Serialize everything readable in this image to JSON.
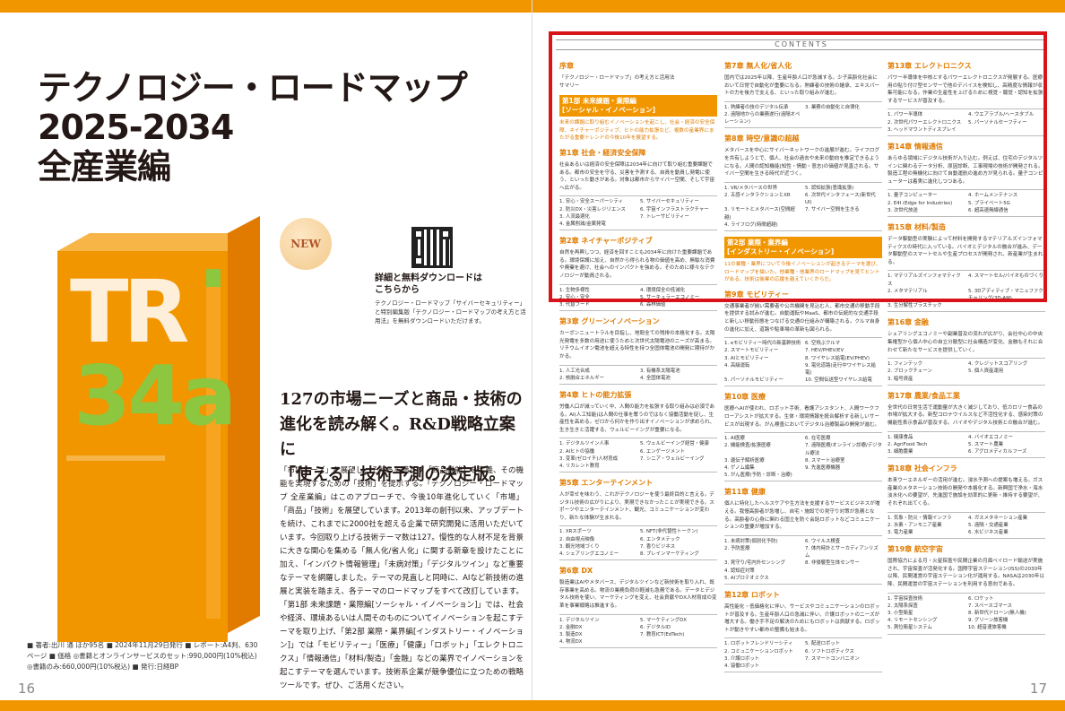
{
  "left": {
    "title_lines": [
      "テクノロジー・ロードマップ",
      "2025-2034",
      "全産業編"
    ],
    "badge": "NEW",
    "download_heading": "詳細と無料ダウンロードは\nこちらから",
    "download_text": "テクノロジー・ロードマップ「サイバーセキュリティー」と特別編集版「テクノロジー・ロードマップの考え方と活用法」を無料ダウンロードいただけます。",
    "catch": [
      "127の市場ニーズと商品・技術の",
      "進化を読み解く。R&D戦略立案に",
      "「使える」技術予測の決定版。"
    ],
    "body": "「市場ニーズ」を展望し、それらを満たす「商品機能」を定義、その機能を実現するための「技術」を提示する。「テクノロジー・ロードマップ 全産業編」はこのアプローチで、今後10年進化していく「市場」「商品」「技術」を展望しています。2013年の創刊以来、アップデートを続け、これまでに2000社を超える企業で研究開発に活用いただいています。今回取り上げる技術テーマ数は127。慢性的な人材不足を背景に大きな関心を集める「無人化/省人化」に関する新章を設けたことに加え、「インパクト情報管理」「未病対策」「デジタルツイン」など重要なテーマを網羅しました。テーマの見直しと同時に、AIなど新技術の進展と実装を踏まえ、各テーマのロードマップをすべて改訂しています。「第1部 未来課題・業際編[ソーシャル・イノベーション]」では、社会や経済、環境あるいは人間そのものについてイノベーションを起こすテーマを取り上げ、「第2部 業際・業界編[インダストリー・イノベーション]」では「モビリティー」「医療」「健康」「ロボット」「エレクトロニクス」「情報通信」「材料/製造」「金融」などの業界でイノベーションを起こすテーマを選んでいます。技術系企業が競争優位に立つための戦略ツールです。ぜひ、ご活用ください。",
    "meta": "■ 著者:出川 通 ほか95名 ■ 2024年11月29日発行 ■ レポート:A4判、630ページ ■ 価格 ◎書籍とオンラインサービスのセット:990,000円(10%税込) ◎書籍のみ:660,000円(10%税込) ■ 発行:日経BP",
    "page_number": "16",
    "book_cover": "TR 34a"
  },
  "right": {
    "contents_label": "CONTENTS",
    "page_number": "17",
    "columns": [
      [
        {
          "kind": "chapter",
          "title": "序章",
          "desc": "「テクノロジー・ロードマップ」の考え方と活用法\nサマリー"
        },
        {
          "kind": "part",
          "title": "第1部 未来課題・業際編\n[ソーシャル・イノベーション]",
          "desc": "未来の課題に取り組むイノベーションを起こし、社会・経済の安全保障、ネイチャーポジティブ、ヒトの能力拡張など、複数の産業界にまたがる重要トレンドの今後10年を展望する。"
        },
        {
          "kind": "chapter",
          "title": "第1章 社会・経済安全保障",
          "desc": "社会あるいは経済の安全保障は2034年に向けて取り組む重要課題である。都市の安全を守る、災害を予測する、自員を動員し発電に使う、といった動きがある。対象は都市からサイバー空間、そして宇宙へ広がる。",
          "items": [
            "1. 安心・安全スーパーシティ",
            "5. サイバーセキュリティー",
            "2. 防災DX・災害レジリエンス",
            "6. 宇宙インフラストラクチャー",
            "3. 人流最適化",
            "7. トレーサビリティー",
            "4. 金属削減/金属発電",
            ""
          ]
        },
        {
          "kind": "chapter",
          "title": "第2章 ネイチャーポジティブ",
          "desc": "自然を再興しつつ、経済を回すことも2034年に向けた重要課題である。環境保護に加え、自然から得られる物の価値を高め、無駄な消費や廃棄を避け、社会へのインパクトを強める。そのために様々なテクノロジーが動員される。",
          "items": [
            "1. 生物多様性",
            "4. 環境保全の低減化",
            "2. 安心・安全",
            "5. サーキュラーエコノミー",
            "3. 代替フード",
            "6. 森林価値"
          ]
        },
        {
          "kind": "chapter",
          "title": "第3章 グリーンイノベーション",
          "desc": "カーボンニュートラルを目指し、地殻全ての残排の本格化する。太陽光発電を多数の用途に使うためと次世代太陽電池のニーズが高まる。リチウムイオン電池を超える特性を持つ全固体電池の開発に期待がかかる。",
          "items": [
            "1. 人工光合成",
            "3. 有機系太陽電池",
            "2. 核融合エネルギー",
            "4. 全固体電池"
          ]
        },
        {
          "kind": "chapter",
          "title": "第4章 ヒトの能力拡張",
          "desc": "労働人口が減っていく中、人間の能力を拡張する取り組みは必須である。AI(人工知能)は人間の仕事を奪うのではなく協働活動を促し、生産性を高める。ゼロから何かを作り出すイノベーションが求められ、生き生きと活躍する、ウェルビーイングが重要になる。",
          "items": [
            "1. デジタルツイン人事",
            "5. ウェルビーイング経営・健康",
            "2. AIヒトの協働",
            "6. エンゲージメント",
            "3. 変革(ゼロイチ)人材育成",
            "7. シニア・ウェルビーイング",
            "4. リカレント教育",
            ""
          ]
        },
        {
          "kind": "chapter",
          "title": "第5章 エンターテインメント",
          "desc": "人が幸せを味わう、これがテクノロジーを使う最終目的と言える。デジタル技術の広がりにより、実現できなかったことが実現できる。スポーツやエンターテインメント、観光、コミュニケーションが変わり、新たな体験が生まれる。",
          "items": [
            "1. XRスポーツ",
            "5. NFT(非代替性トークン)",
            "2. 自由視点映像",
            "6. エンタメテック",
            "3. 観光地域づくり",
            "7. 香りビジネス",
            "4. シェアリングエコノミー",
            "8. ブレインマーケティング"
          ]
        },
        {
          "kind": "chapter",
          "title": "第6章 DX",
          "desc": "製造業はAIやメタバース、デジタルツインなど新技術を取り入れ、既存事業を高める。物流の業務負荷の軽減も急務である。データとデジタル技術を使い、マーケティングを変え、社会貢献やDX人材育成の変革を事業戦略は推進する。",
          "items": [
            "1. デジタルツイン",
            "5. マーケティングDX",
            "2. 金融DX",
            "6. デジタルID",
            "3. 製造DX",
            "7. 教育ICT(EdTech)",
            "4. 物流DX",
            ""
          ]
        }
      ],
      [
        {
          "kind": "chapter",
          "title": "第7章 無人化/省人化",
          "desc": "国内では2025年以降、生産年齢人口が急減する。少子高齢化社会において日常で自動化が重要になる。熟練者の技術の継承、エキスパートの力を後方で支える、といった取り組みが進む。",
          "items": [
            "1. 熟練者の技のデジタル伝承",
            "3. 業務の自動化と自律化",
            "2. 遠隔地からの業務遂行(遠隔オペレーション)",
            ""
          ]
        },
        {
          "kind": "chapter",
          "title": "第8章 時空/意識の超越",
          "desc": "メタバースを中心にサイバーネットワークの進展が進む。ライフログを共有しようとで、個人、社会の過去や未来の動向を推定できるようになる。人間の認知機能(知性・情動・意志)の価値が見直される。サイバー空間を生きる時代が近づく。",
          "items": [
            "1. VR/メタバースの世界",
            "5. 認知拡張(意識拡張)",
            "2. 五感インタラクションとXR",
            "6. 次世代インタフェース(新世代UI)",
            "3. リモートとメタバース(空間超越)",
            "7. サイバー空間を生きる",
            "4. ライフログ(時間超越)",
            ""
          ]
        },
        {
          "kind": "part",
          "title": "第2部 業際・業界編\n[インダストリー・イノベーション]",
          "desc": "11の業種・業界について今後イノベーションが起きるテーマを選び、ロードマップを描いた。他業種・他業界のロードマップを見てヒントがある。技術は後業の応援を越えていくからだ。"
        },
        {
          "kind": "chapter",
          "title": "第9章 モビリティー",
          "desc": "交通事業者が揃い需要者や公共機関を見込む人、都市交通の移動手段を提供する試みが進む。自動運転やMaaS、都市の伝統的な交通手段と新しい移動形態をつなげる交通の仕組みが構築される。クルマ自身の進化に加え、道路や駐車場の革新も図られる。",
          "items": [
            "1. eモビリティー時代の新基幹技術",
            "6. 空飛ぶクルマ",
            "2. スマートモビリティー",
            "7. HEV/PHEV/EV",
            "3. AIとモビリティー",
            "8. ワイヤレス給電(EV/PHEV)",
            "4. 高級運転",
            "9. 電化道路(走行中ワイヤレス給電)",
            "5. パーソナルモビリティー",
            "10. 空間伝送型ワイヤレス給電"
          ]
        },
        {
          "kind": "chapter",
          "title": "第10章 医療",
          "desc": "医療へAIが使われ、ロボット手術、看護アシスタント、人間ワークフローアシストが拡大する。生体・環境情報を統合解析する新しいサービスが出現する。がん検査においてデジタル治療製品の開発が進む。",
          "items": [
            "1. AI医療",
            "6. 在宅医療",
            "2. 機能検査/拡張医療",
            "7. 遠隔医療/オンライン診療/デジタル療法",
            "3. 遺伝子解析医療",
            "8. スマート治療室",
            "4. ゲノム編集",
            "9. 先進医療機器",
            "5. がん医療(予防・診断・治療)",
            ""
          ]
        },
        {
          "kind": "chapter",
          "title": "第11章 健康",
          "desc": "個人に特化したヘルスケアや生方法を支援するサービスビジネスが増える。我慢高齢者が急増し、自宅・施設での見守り対策が急務となる。高齢者の心身に関わる国立を防ぐ会話ロボットなどコミュニケーションの重要が増加する。",
          "items": [
            "1. 未病対策(個別化予防)",
            "6. ウイルス検査",
            "2. 予防医療",
            "7. 体内時計とサーカディアンリズム",
            "3. 見守り/宅内外センシング",
            "8. 非侵襲型生体センサー",
            "4. 認知症対策",
            "",
            "5. AIプロテオミクス",
            ""
          ]
        },
        {
          "kind": "chapter",
          "title": "第12章 ロボット",
          "desc": "高性能化・低価格化に伴い、サービスやコミュニケーションのロボットが普及する。生産年齢人口の急減に伴い、介護ロボットのニーズが増大する。働き手不足の解決のためにもロボットは貢献する。ロボットが動きやすい都市の整備も始まる。",
          "items": [
            "1. ロボットフレンドリーシティ",
            "5. 配送ロボット",
            "2. コミュニケーションロボット",
            "6. ソフトロボティクス",
            "3. 介護ロボット",
            "7. スマートコンバニオン",
            "4. 協働ロボット",
            ""
          ]
        }
      ],
      [
        {
          "kind": "chapter",
          "title": "第13章 エレクトロニクス",
          "desc": "パワー半導体を中核とするパワーエレクトロニクスが発展する。医療用の貼り付け型センサーで他のデバイスを検知し、高精度な情報が収集可能になる。作業の生産性を上げるために視覚・聴覚・認知を拡張するサービスが普及する。",
          "items": [
            "1. パワー半導体",
            "4. ウエアラブル/ヘースタブル",
            "2. 次世代パワーエレクトロニクス",
            "5. パーソナルセーフティー",
            "3. ヘッドマウントディスプレイ",
            ""
          ]
        },
        {
          "kind": "chapter",
          "title": "第14章 情報通信",
          "desc": "あらゆる領域にデジタル技術が入り込む。例えば、住宅のデジタルツインに関わるデータ分析、原因診断、工事現場の技術が開発される。製造工程の無機化に向けて自動運航の進め方が見られる。量子コンピューターは着実に進化しつつある。",
          "items": [
            "1. 量子コンピューター",
            "4. ホームメンテナンス",
            "2. E4I (Edge for Industries)",
            "5. プライベート5G",
            "3. 次世代放送",
            "6. 超高速無線通信"
          ]
        },
        {
          "kind": "chapter",
          "title": "第15章 材料/製造",
          "desc": "データ駆動型の実験によって材料を開発するマテリアルズインフォマティクスの時代に入っている。バイオとデジタルの融合が進み、データ駆動型のスマートセルや生産プロセスが開発され、新産業が生まれる。",
          "items": [
            "1. マテリアルズインフォマティクス",
            "4. スマートセル/バイオものづくり",
            "2. メタマテリアル",
            "5. 3Dアディティブ・マニュファクチャリング(3D-AM)",
            "3. 生分解性プラスチック",
            ""
          ]
        },
        {
          "kind": "chapter",
          "title": "第16章 金融",
          "desc": "シェアリングエコノミーや副業普及の流れが広がり、会社中心の中央集権型から個人中心の自立分散型に社会構造が変化、金融もそれに合わせて新たなサービスを提供していく。",
          "items": [
            "1. フィンテック",
            "4. クレジットスコアリング",
            "2. ブロックチェーン",
            "5. 個人資産運用",
            "3. 暗号資産",
            ""
          ]
        },
        {
          "kind": "chapter",
          "title": "第17章 農業/食品工業",
          "desc": "全世代の日常生活で運動量が大きく減少しており、低カロリー食品の市場が拡大する。新型コロナウイルスなど不活性化する、感染対策の機能性表示食品が普及する。バイオやデジタル技術との融合が進む。",
          "items": [
            "1. 健康食品",
            "4. バイオエコノミー",
            "2. AgriFood Tech",
            "5. スマート農業",
            "3. 細胞農業",
            "6. アグロメディカルフーズ"
          ]
        },
        {
          "kind": "chapter",
          "title": "第18章 社会インフラ",
          "desc": "本来ウーエネルギーの活用が進む。浸水予測への提案も増える。ガス産業のメタネーション技術の開発や本格化する。新興国で浄水・海水淡水化への要望が、先進国で施設を効率的に更新・維持する要望が、それぞれ出てくる。",
          "items": [
            "1. 気象・防災・情報インフラ",
            "4. ガスメタネーション産業",
            "2. 水素・アンモニア産業",
            "5. 遠隔・交通産業",
            "3. 電力産業",
            "6. 水ビジネス産業"
          ]
        },
        {
          "kind": "chapter",
          "title": "第19章 航空宇宙",
          "desc": "国際協力による月・火星探査や民間企業の月面ベイロード輸送が実施され、宇宙探査が活発化する。国際宇宙ステーション(ISS)の2030年以降、民間運営の宇宙ステーション化が運用する。NASAは2030年以降、民間運営の宇宙ステーションを利用する意向である。",
          "items": [
            "1. 宇宙探査技術",
            "6. ロケット",
            "2. 太陽系探査",
            "7. スペースゴマース",
            "3. 小型衛星",
            "8. 新世代ドローン(無人機)",
            "4. リモートセンシング",
            "9. グリーン旅客機",
            "5. 測位衛星システム",
            "10. 超音速旅客機"
          ]
        }
      ]
    ]
  }
}
